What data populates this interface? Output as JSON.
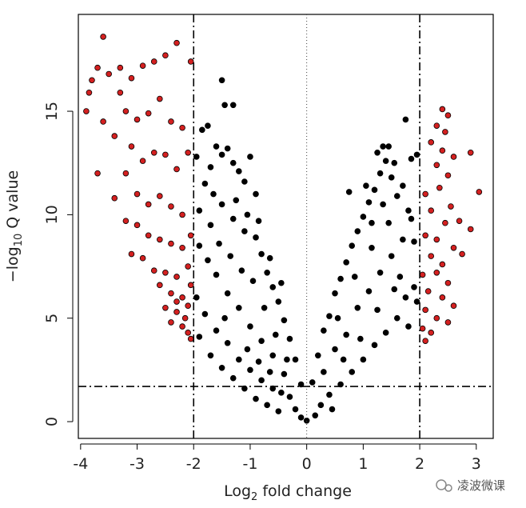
{
  "chart_data": {
    "type": "scatter",
    "xlabel": {
      "text": "Log",
      "sub": "2",
      "rest": " fold change"
    },
    "ylabel": {
      "text": "−log",
      "sub": "10",
      "rest": " Q value"
    },
    "xlim": [
      -4.04,
      3.3
    ],
    "ylim": [
      -0.81,
      19.68
    ],
    "xticks": [
      -4,
      -3,
      -2,
      -1,
      0,
      1,
      2,
      3
    ],
    "yticks": [
      0,
      5,
      10,
      15
    ],
    "fold_change_cutoffs": [
      -2,
      2
    ],
    "q_value_cutoff": 1.7,
    "center_line": 0,
    "series": [
      {
        "color": "#000000",
        "x": [
          -1.9,
          -1.8,
          -1.7,
          -1.6,
          -1.5,
          -1.4,
          -1.3,
          -1.2,
          -1.1,
          -1.0,
          -0.9,
          -1.85,
          -1.75,
          -1.5,
          -1.45,
          -1.3,
          -1.9,
          -1.7,
          -1.5,
          -1.3,
          -1.1,
          -0.9,
          -0.8,
          -0.7,
          -0.6,
          -0.5,
          -0.4,
          -0.3,
          -0.2,
          -0.1,
          -1.95,
          -1.8,
          -1.6,
          -1.4,
          -1.2,
          -1.0,
          -0.8,
          -0.6,
          -0.4,
          -0.3,
          -0.2,
          -1.9,
          -1.7,
          -1.5,
          -1.3,
          -1.1,
          -0.9,
          -0.7,
          -0.5,
          -1.6,
          -1.4,
          -1.2,
          -1.0,
          -0.8,
          -0.6,
          -1.75,
          -1.55,
          -1.35,
          -1.15,
          -0.95,
          -0.75,
          -0.55,
          -0.35,
          -1.95,
          -1.65,
          -1.25,
          -1.05,
          -0.85,
          -0.65,
          -0.45,
          -1.45,
          -1.05,
          -0.85,
          -0.65,
          -0.45,
          0.1,
          0.2,
          0.3,
          0.4,
          0.5,
          0.6,
          0.7,
          0.8,
          0.9,
          1.0,
          1.1,
          1.2,
          1.3,
          1.4,
          1.5,
          1.6,
          1.7,
          1.8,
          1.9,
          1.95,
          0.75,
          1.05,
          1.35,
          1.45,
          1.55,
          1.25,
          1.75,
          1.85,
          0.3,
          0.5,
          0.7,
          0.9,
          1.1,
          1.3,
          1.5,
          1.7,
          1.9,
          0.4,
          0.6,
          0.8,
          1.0,
          1.2,
          1.4,
          1.6,
          1.8,
          1.95,
          0.55,
          0.85,
          1.15,
          1.45,
          1.65,
          1.85,
          0.65,
          0.95,
          1.25,
          1.55,
          1.75,
          0.25,
          0.45,
          0.15,
          -0.1,
          0.0,
          1.35,
          1.15
        ],
        "values": [
          10.2,
          11.5,
          12.3,
          13.3,
          12.9,
          13.2,
          12.5,
          12.1,
          11.6,
          12.8,
          11.0,
          14.1,
          14.3,
          16.5,
          15.3,
          15.3,
          8.5,
          9.5,
          10.5,
          9.8,
          9.2,
          8.9,
          8.1,
          7.2,
          6.5,
          5.8,
          4.9,
          4.0,
          3.0,
          1.8,
          6.0,
          5.2,
          7.1,
          6.2,
          5.5,
          4.6,
          3.9,
          3.2,
          2.3,
          1.2,
          0.6,
          4.1,
          3.2,
          2.6,
          2.1,
          1.6,
          1.1,
          0.8,
          0.5,
          4.4,
          3.8,
          3.0,
          2.5,
          2.0,
          1.6,
          7.8,
          8.6,
          8.0,
          7.3,
          6.8,
          5.5,
          4.2,
          3.0,
          12.8,
          11.0,
          10.7,
          10.0,
          9.7,
          7.9,
          6.7,
          5.0,
          3.5,
          2.9,
          2.4,
          1.4,
          1.9,
          3.2,
          4.4,
          5.1,
          6.2,
          6.9,
          7.7,
          8.5,
          9.2,
          9.9,
          10.6,
          11.2,
          12.0,
          12.6,
          11.8,
          10.9,
          11.4,
          10.2,
          8.7,
          12.9,
          11.1,
          11.4,
          13.3,
          13.3,
          12.5,
          13.0,
          14.6,
          12.7,
          2.4,
          3.5,
          4.2,
          5.5,
          6.3,
          7.2,
          8.0,
          8.8,
          6.5,
          1.3,
          1.8,
          2.4,
          3.0,
          3.7,
          4.3,
          5.0,
          4.6,
          5.8,
          5.0,
          7.0,
          8.4,
          9.6,
          7.0,
          9.8,
          3.0,
          4.0,
          5.4,
          6.4,
          6.0,
          0.8,
          0.6,
          0.3,
          0.2,
          0.05,
          10.5,
          9.6
        ]
      },
      {
        "color": "#d42020",
        "x": [
          -3.6,
          -3.8,
          -3.7,
          -3.9,
          -3.5,
          -3.3,
          -3.1,
          -2.9,
          -2.7,
          -2.5,
          -2.3,
          -2.05,
          -3.85,
          -3.6,
          -3.3,
          -3.2,
          -3.0,
          -2.8,
          -2.6,
          -2.4,
          -2.2,
          -3.4,
          -3.1,
          -2.9,
          -2.7,
          -2.5,
          -2.3,
          -2.1,
          -3.7,
          -3.2,
          -3.4,
          -3.0,
          -2.8,
          -2.6,
          -2.4,
          -2.2,
          -3.2,
          -3.0,
          -2.8,
          -2.6,
          -2.4,
          -2.2,
          -2.05,
          -3.1,
          -2.9,
          -2.7,
          -2.5,
          -2.3,
          -2.1,
          -2.6,
          -2.4,
          -2.2,
          -2.05,
          -2.5,
          -2.3,
          -2.15,
          -2.4,
          -2.2,
          -2.1,
          -2.05,
          -2.3,
          -2.1,
          2.4,
          2.5,
          2.3,
          2.45,
          2.2,
          2.4,
          2.6,
          2.9,
          2.3,
          2.5,
          3.05,
          2.1,
          2.35,
          2.55,
          2.2,
          2.45,
          2.7,
          2.9,
          2.1,
          2.3,
          2.6,
          2.2,
          2.4,
          2.75,
          2.05,
          2.3,
          2.5,
          2.15,
          2.4,
          2.6,
          2.1,
          2.3,
          2.5,
          2.05,
          2.2,
          2.1
        ],
        "values": [
          18.6,
          16.5,
          17.1,
          15.0,
          16.8,
          17.1,
          16.6,
          17.2,
          17.4,
          17.7,
          18.3,
          17.4,
          15.9,
          14.5,
          15.9,
          15.0,
          14.6,
          14.9,
          15.6,
          14.5,
          14.2,
          13.8,
          13.3,
          12.6,
          13.0,
          12.9,
          12.2,
          13.0,
          12.0,
          12.0,
          10.8,
          11.0,
          10.5,
          10.9,
          10.4,
          10.0,
          9.7,
          9.5,
          9.0,
          8.8,
          8.6,
          8.4,
          9.0,
          8.1,
          7.9,
          7.3,
          7.2,
          7.0,
          7.5,
          6.6,
          6.2,
          6.0,
          6.6,
          5.5,
          5.3,
          5.0,
          4.8,
          4.6,
          4.3,
          4.0,
          5.8,
          5.6,
          15.1,
          14.8,
          14.3,
          14.0,
          13.5,
          13.1,
          12.8,
          13.0,
          12.4,
          11.9,
          11.1,
          11.0,
          11.3,
          10.4,
          10.2,
          9.6,
          9.7,
          9.3,
          9.0,
          8.8,
          8.4,
          8.0,
          7.6,
          8.1,
          7.1,
          7.2,
          6.7,
          6.3,
          6.0,
          5.6,
          5.4,
          5.0,
          4.8,
          4.5,
          4.3,
          3.9
        ]
      }
    ]
  },
  "watermark": "凌波微课"
}
